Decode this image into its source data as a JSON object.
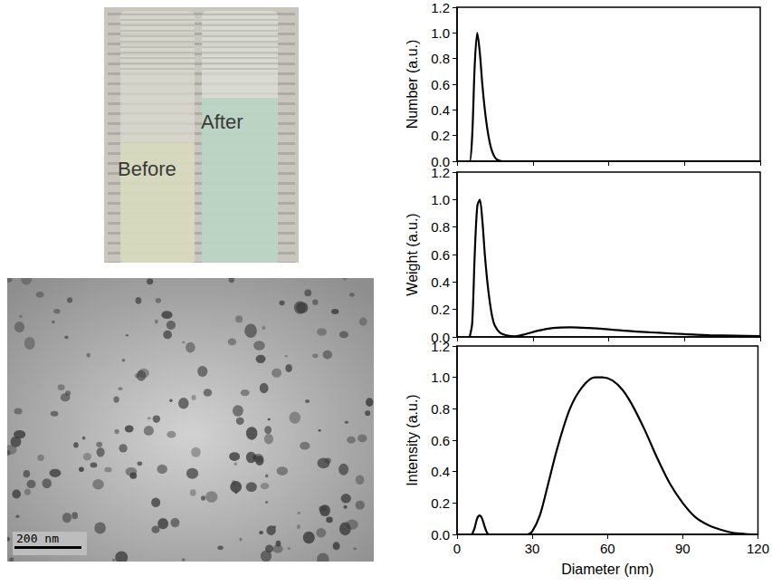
{
  "photo": {
    "labels": [
      "Before",
      "After"
    ]
  },
  "micrograph": {
    "scale_bar": "200 nm"
  },
  "chart_data": [
    {
      "type": "line",
      "y_label": "Number (a.u.)",
      "color": "#000000",
      "grid": false,
      "tick_labels": "y",
      "xlim": [
        0,
        120
      ],
      "xticks": [
        0,
        30,
        60,
        90,
        120
      ],
      "ylim": [
        0,
        1.2
      ],
      "yticks": [
        {
          "value": 0,
          "label": "0.0"
        },
        {
          "value": 0.2,
          "label": "0.2"
        },
        {
          "value": 0.4,
          "label": "0.4"
        },
        {
          "value": 0.6,
          "label": "0.6"
        },
        {
          "value": 0.8,
          "label": "0.8"
        },
        {
          "value": 1.0,
          "label": "1.0"
        },
        {
          "value": 1.2,
          "label": "1.2"
        }
      ],
      "x": [
        4,
        5,
        6,
        7,
        8,
        9,
        10,
        11,
        12,
        13,
        14,
        15,
        16,
        18,
        30,
        60,
        90,
        120
      ],
      "values": [
        0,
        0,
        0.2,
        0.75,
        1.0,
        0.85,
        0.6,
        0.4,
        0.25,
        0.14,
        0.07,
        0.03,
        0.01,
        0,
        0,
        0,
        0,
        0
      ]
    },
    {
      "type": "line",
      "y_label": "Weight (a.u.)",
      "color": "#000000",
      "grid": false,
      "tick_labels": "y",
      "xlim": [
        0,
        120
      ],
      "xticks": [
        0,
        30,
        60,
        90,
        120
      ],
      "ylim": [
        0,
        1.2
      ],
      "yticks": [
        {
          "value": 0,
          "label": "0.0"
        },
        {
          "value": 0.2,
          "label": "0.2"
        },
        {
          "value": 0.4,
          "label": "0.4"
        },
        {
          "value": 0.6,
          "label": "0.6"
        },
        {
          "value": 0.8,
          "label": "0.8"
        },
        {
          "value": 1.0,
          "label": "1.0"
        },
        {
          "value": 1.2,
          "label": "1.2"
        }
      ],
      "x": [
        5,
        6,
        7,
        8,
        9,
        10,
        11,
        12,
        13,
        14,
        15,
        17,
        20,
        23,
        27,
        32,
        38,
        45,
        52,
        60,
        70,
        80,
        90,
        100,
        110,
        120
      ],
      "values": [
        0,
        0.1,
        0.6,
        0.95,
        1.0,
        0.85,
        0.6,
        0.4,
        0.25,
        0.14,
        0.08,
        0.03,
        0.01,
        0.005,
        0.02,
        0.045,
        0.065,
        0.07,
        0.065,
        0.055,
        0.04,
        0.03,
        0.02,
        0.013,
        0.009,
        0.006
      ]
    },
    {
      "type": "line",
      "y_label": "Intensity (a.u.)",
      "x_label": "Diameter (nm)",
      "color": "#000000",
      "grid": false,
      "xlim": [
        0,
        120
      ],
      "xticks": [
        0,
        30,
        60,
        90,
        120
      ],
      "ylim": [
        0,
        1.2
      ],
      "yticks": [
        {
          "value": 0,
          "label": "0.0"
        },
        {
          "value": 0.2,
          "label": "0.2"
        },
        {
          "value": 0.4,
          "label": "0.4"
        },
        {
          "value": 0.6,
          "label": "0.6"
        },
        {
          "value": 0.8,
          "label": "0.8"
        },
        {
          "value": 1.0,
          "label": "1.0"
        },
        {
          "value": 1.2,
          "label": "1.2"
        }
      ],
      "x": [
        6,
        7,
        8,
        9,
        10,
        11,
        12,
        13,
        20,
        28,
        30,
        33,
        36,
        40,
        45,
        50,
        55,
        58,
        62,
        66,
        70,
        75,
        80,
        85,
        90,
        95,
        100,
        105,
        110,
        115,
        120
      ],
      "values": [
        0,
        0.04,
        0.1,
        0.12,
        0.1,
        0.05,
        0.01,
        0,
        0,
        0,
        0.02,
        0.12,
        0.3,
        0.55,
        0.8,
        0.94,
        1.0,
        1.0,
        0.98,
        0.92,
        0.82,
        0.66,
        0.48,
        0.32,
        0.2,
        0.11,
        0.06,
        0.03,
        0.01,
        0.003,
        0
      ]
    }
  ]
}
